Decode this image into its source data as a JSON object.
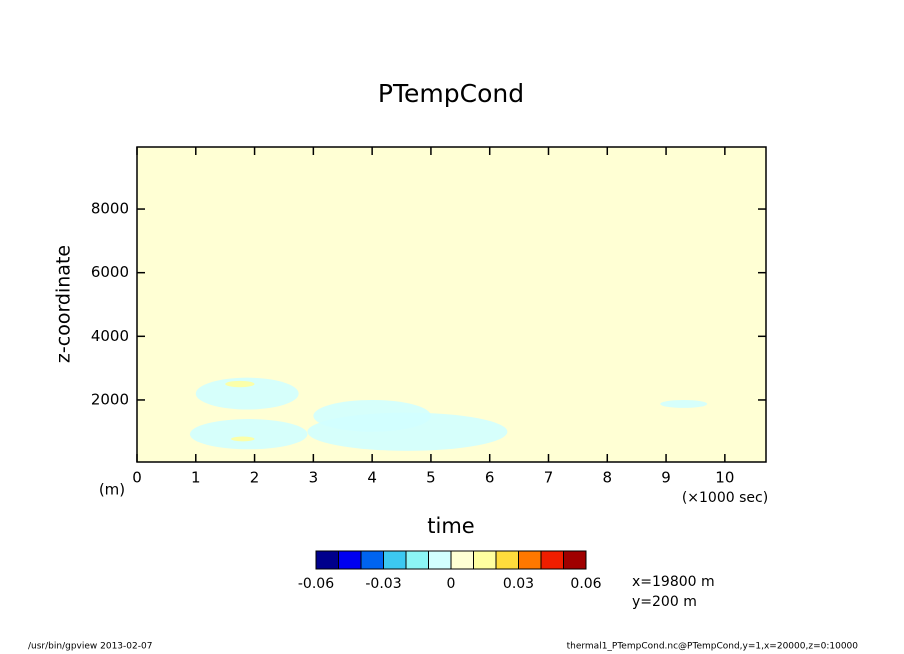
{
  "chart_data": {
    "type": "contour",
    "title": "PTempCond",
    "x_label": "time",
    "x_unit": "(×1000 sec)",
    "y_label": "z-coordinate",
    "y_unit": "(m)",
    "xlim": [
      0,
      10.7
    ],
    "xticks": [
      0,
      1,
      2,
      3,
      4,
      5,
      6,
      7,
      8,
      9,
      10
    ],
    "ylim": [
      50,
      9950
    ],
    "yticks": [
      2000,
      4000,
      6000,
      8000
    ],
    "colorbar": {
      "levels": [
        -0.06,
        -0.05,
        -0.04,
        -0.03,
        -0.02,
        -0.01,
        0,
        0.01,
        0.02,
        0.03,
        0.04,
        0.05,
        0.06
      ],
      "ticks": [
        -0.06,
        -0.03,
        0,
        0.03,
        0.06
      ],
      "colors": [
        "#00008c",
        "#0000f0",
        "#0064f0",
        "#3cc8f0",
        "#8cf5f5",
        "#d2ffff",
        "#ffffd4",
        "#ffffa0",
        "#ffdc3c",
        "#ff7800",
        "#f01e00",
        "#a00000"
      ]
    },
    "regions": [
      {
        "range": [
          -0.01,
          0
        ],
        "t": [
          1.0,
          2.75
        ],
        "z": [
          1700,
          2700
        ]
      },
      {
        "range": [
          -0.01,
          0
        ],
        "t": [
          0.9,
          2.9
        ],
        "z": [
          450,
          1400
        ]
      },
      {
        "range": [
          -0.01,
          0
        ],
        "t": [
          3.0,
          5.0
        ],
        "z": [
          1000,
          2000
        ]
      },
      {
        "range": [
          -0.01,
          0
        ],
        "t": [
          2.9,
          6.3
        ],
        "z": [
          400,
          1600
        ]
      },
      {
        "range": [
          -0.01,
          0
        ],
        "t": [
          8.9,
          9.7
        ],
        "z": [
          1750,
          2000
        ]
      },
      {
        "range": [
          0.01,
          0.02
        ],
        "t": [
          1.5,
          2.0
        ],
        "z": [
          2400,
          2600
        ]
      },
      {
        "range": [
          0.01,
          0.02
        ],
        "t": [
          1.6,
          2.0
        ],
        "z": [
          700,
          850
        ]
      }
    ],
    "annotations": [
      "x=19800 m",
      "y=200 m"
    ],
    "footer_left": "/usr/bin/gpview  2013-02-07",
    "footer_right": "thermal1_PTempCond.nc@PTempCond,y=1,x=20000,z=0:10000"
  }
}
